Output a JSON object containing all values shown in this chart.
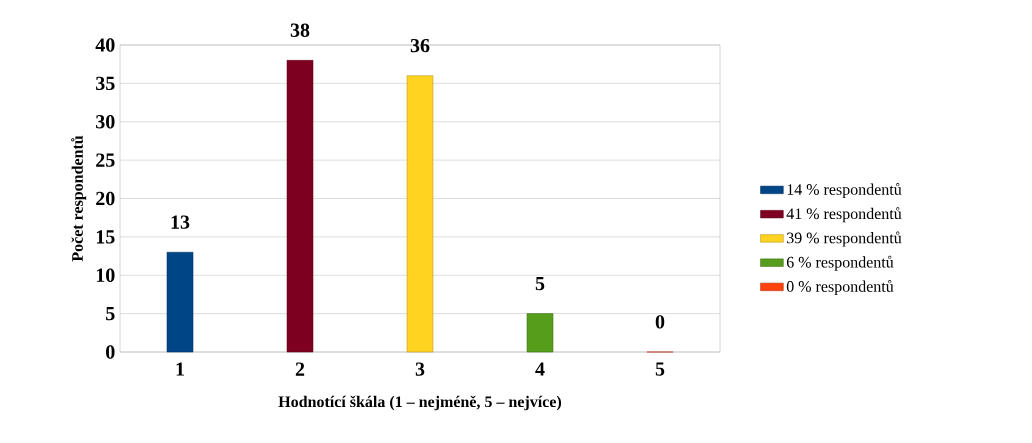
{
  "chart_data": {
    "type": "bar",
    "xlabel": "Hodnotící škála (1 – nejméně, 5 – nejvíce)",
    "ylabel": "Počet respondentů",
    "categories": [
      "1",
      "2",
      "3",
      "4",
      "5"
    ],
    "series": [
      {
        "name": "14 % respondentů",
        "color": "#004586",
        "values": [
          13,
          null,
          null,
          null,
          null
        ]
      },
      {
        "name": "41 % respondentů",
        "color": "#7e0021",
        "values": [
          null,
          38,
          null,
          null,
          null
        ]
      },
      {
        "name": "39 % respondentů",
        "color": "#ffd320",
        "values": [
          null,
          null,
          36,
          null,
          null
        ]
      },
      {
        "name": "6 % respondentů",
        "color": "#579d1c",
        "values": [
          null,
          null,
          null,
          5,
          null
        ]
      },
      {
        "name": "0 % respondentů",
        "color": "#ff420e",
        "values": [
          null,
          null,
          null,
          null,
          0
        ]
      }
    ],
    "ylim": [
      0,
      40
    ],
    "yticks": [
      0,
      5,
      10,
      15,
      20,
      25,
      30,
      35,
      40
    ],
    "grid": "y",
    "legend": "right",
    "data_labels": true
  }
}
